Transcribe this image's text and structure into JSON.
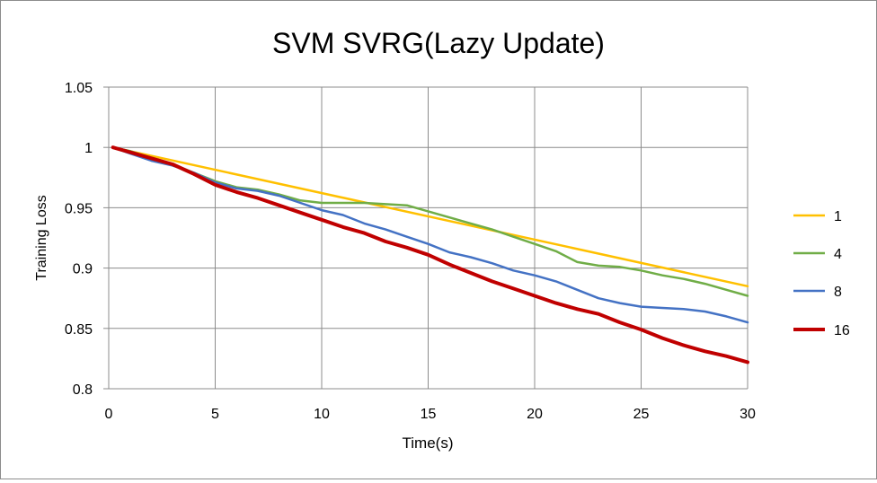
{
  "chart_data": {
    "type": "line",
    "title": "SVM SVRG(Lazy Update)",
    "xlabel": "Time(s)",
    "ylabel": "Training Loss",
    "xlim": [
      0,
      30
    ],
    "ylim": [
      0.8,
      1.05
    ],
    "xticks": [
      "0",
      "5",
      "10",
      "15",
      "20",
      "25",
      "30"
    ],
    "yticks": [
      "0.8",
      "0.85",
      "0.9",
      "0.95",
      "1",
      "1.05"
    ],
    "grid": true,
    "legend_position": "right",
    "series": [
      {
        "name": "1",
        "color": "#FFC000",
        "points": [
          [
            0.2,
            1.0
          ],
          [
            30,
            0.885
          ]
        ]
      },
      {
        "name": "4",
        "color": "#70AD47",
        "points": [
          [
            0.2,
            1.0
          ],
          [
            1,
            0.997
          ],
          [
            2,
            0.991
          ],
          [
            3,
            0.986
          ],
          [
            4,
            0.979
          ],
          [
            5,
            0.972
          ],
          [
            6,
            0.967
          ],
          [
            7,
            0.965
          ],
          [
            8,
            0.961
          ],
          [
            9,
            0.956
          ],
          [
            10,
            0.954
          ],
          [
            11,
            0.954
          ],
          [
            12,
            0.954
          ],
          [
            13,
            0.953
          ],
          [
            14,
            0.952
          ],
          [
            15,
            0.947
          ],
          [
            16,
            0.942
          ],
          [
            17,
            0.937
          ],
          [
            18,
            0.932
          ],
          [
            19,
            0.926
          ],
          [
            20,
            0.92
          ],
          [
            21,
            0.914
          ],
          [
            22,
            0.905
          ],
          [
            23,
            0.902
          ],
          [
            24,
            0.901
          ],
          [
            25,
            0.898
          ],
          [
            26,
            0.894
          ],
          [
            27,
            0.891
          ],
          [
            28,
            0.887
          ],
          [
            29,
            0.882
          ],
          [
            30,
            0.877
          ]
        ]
      },
      {
        "name": "8",
        "color": "#4472C4",
        "points": [
          [
            0.2,
            1.0
          ],
          [
            1,
            0.995
          ],
          [
            2,
            0.989
          ],
          [
            3,
            0.985
          ],
          [
            4,
            0.979
          ],
          [
            5,
            0.971
          ],
          [
            6,
            0.966
          ],
          [
            7,
            0.964
          ],
          [
            8,
            0.96
          ],
          [
            9,
            0.954
          ],
          [
            10,
            0.948
          ],
          [
            11,
            0.944
          ],
          [
            12,
            0.937
          ],
          [
            13,
            0.932
          ],
          [
            14,
            0.926
          ],
          [
            15,
            0.92
          ],
          [
            16,
            0.913
          ],
          [
            17,
            0.909
          ],
          [
            18,
            0.904
          ],
          [
            19,
            0.898
          ],
          [
            20,
            0.894
          ],
          [
            21,
            0.889
          ],
          [
            22,
            0.882
          ],
          [
            23,
            0.875
          ],
          [
            24,
            0.871
          ],
          [
            25,
            0.868
          ],
          [
            26,
            0.867
          ],
          [
            27,
            0.866
          ],
          [
            28,
            0.864
          ],
          [
            29,
            0.86
          ],
          [
            30,
            0.855
          ]
        ]
      },
      {
        "name": "16",
        "color": "#C00000",
        "points": [
          [
            0.2,
            1.0
          ],
          [
            1,
            0.996
          ],
          [
            2,
            0.991
          ],
          [
            3,
            0.986
          ],
          [
            4,
            0.978
          ],
          [
            5,
            0.969
          ],
          [
            6,
            0.963
          ],
          [
            7,
            0.958
          ],
          [
            8,
            0.952
          ],
          [
            9,
            0.946
          ],
          [
            10,
            0.94
          ],
          [
            11,
            0.934
          ],
          [
            12,
            0.929
          ],
          [
            13,
            0.922
          ],
          [
            14,
            0.917
          ],
          [
            15,
            0.911
          ],
          [
            16,
            0.903
          ],
          [
            17,
            0.896
          ],
          [
            18,
            0.889
          ],
          [
            19,
            0.883
          ],
          [
            20,
            0.877
          ],
          [
            21,
            0.871
          ],
          [
            22,
            0.866
          ],
          [
            23,
            0.862
          ],
          [
            24,
            0.855
          ],
          [
            25,
            0.849
          ],
          [
            26,
            0.842
          ],
          [
            27,
            0.836
          ],
          [
            28,
            0.831
          ],
          [
            29,
            0.827
          ],
          [
            30,
            0.822
          ]
        ]
      }
    ]
  }
}
